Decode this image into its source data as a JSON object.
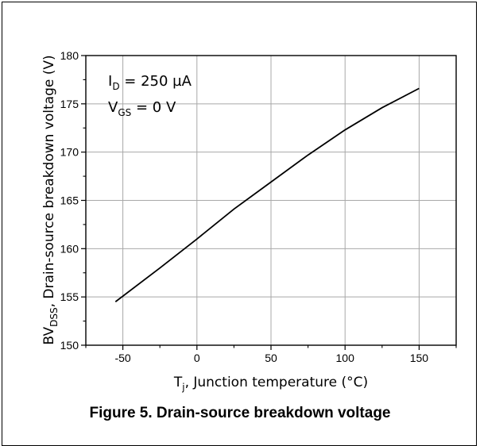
{
  "chart_data": {
    "type": "line",
    "title": "",
    "xlabel": "T",
    "xlabel_sub": "j",
    "xlabel_rest": ", Junction temperature (°C)",
    "ylabel": "BV",
    "ylabel_sub": "DSS",
    "ylabel_rest": ", Drain-source breakdown voltage (V)",
    "xlim": [
      -75,
      175
    ],
    "ylim": [
      150,
      180
    ],
    "xticks": [
      -50,
      0,
      50,
      100,
      150
    ],
    "yticks": [
      150,
      155,
      160,
      165,
      170,
      175,
      180
    ],
    "grid": true,
    "series": [
      {
        "x": [
          -55,
          -25,
          0,
          25,
          50,
          75,
          100,
          125,
          150
        ],
        "y": [
          154.5,
          158.0,
          161.0,
          164.1,
          166.9,
          169.7,
          172.3,
          174.6,
          176.6
        ]
      }
    ],
    "annotations": [
      {
        "main": "I",
        "sub": "D",
        "rest": " = 250 µA"
      },
      {
        "main": "V",
        "sub": "GS",
        "rest": " = 0 V"
      }
    ],
    "line_color": "#000000",
    "grid_color": "#a8a8a8"
  },
  "caption": "Figure 5. Drain-source breakdown voltage"
}
